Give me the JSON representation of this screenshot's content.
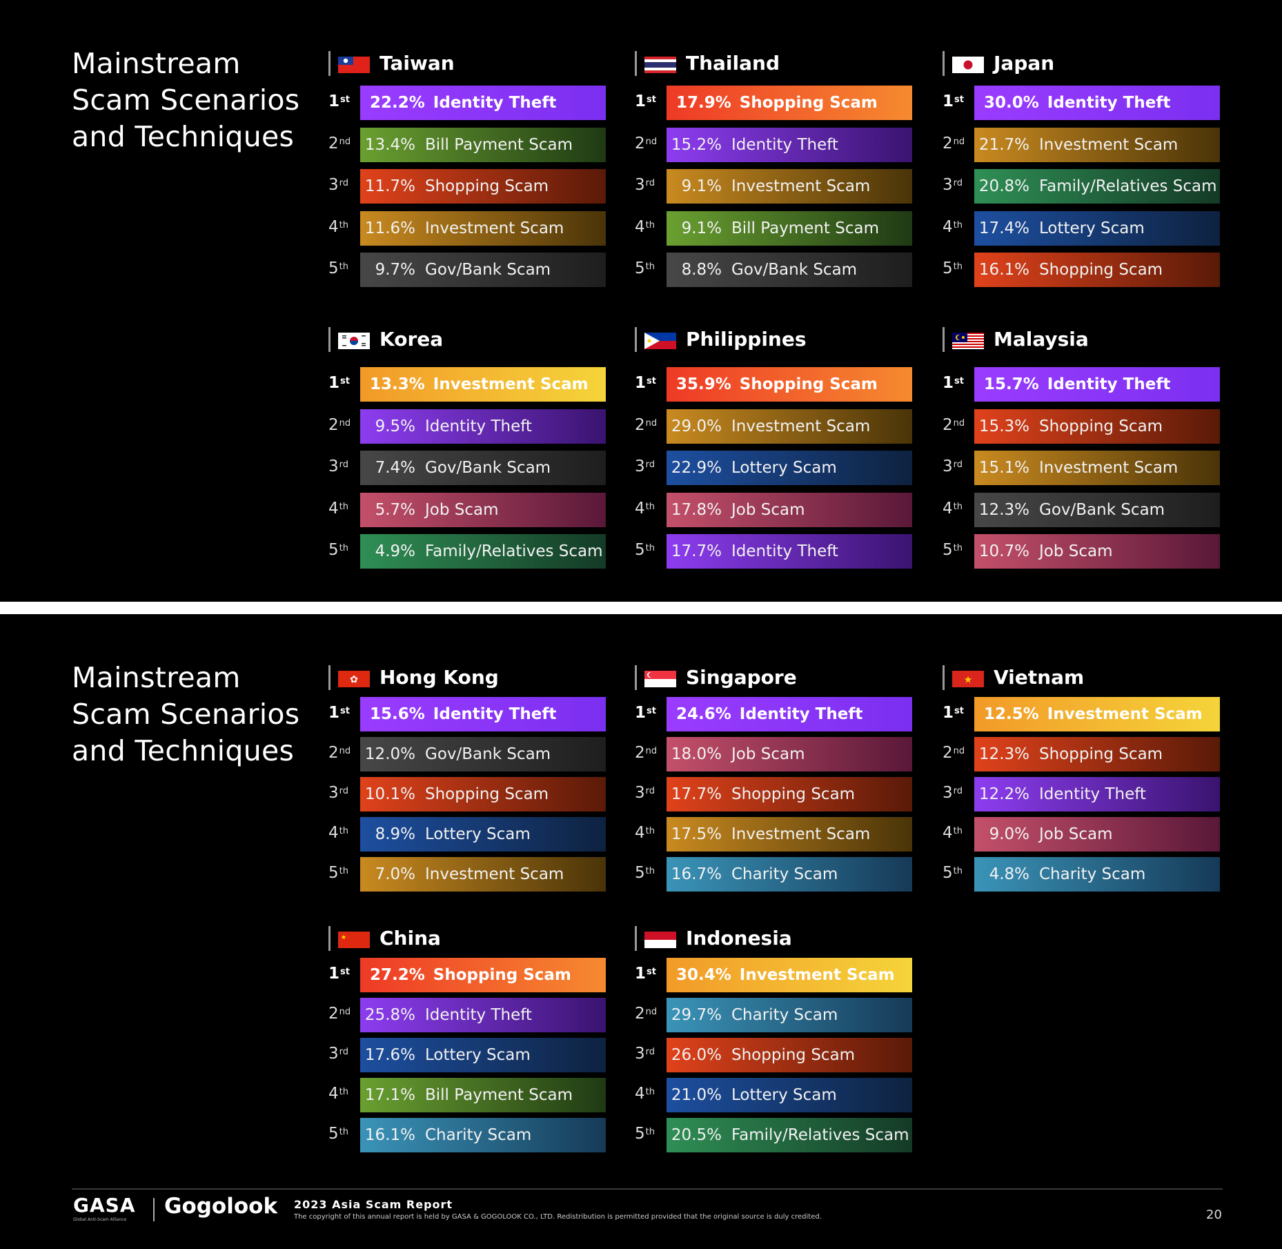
{
  "colors": {
    "Identity Theft": [
      "#8d3df0",
      "#3a1470"
    ],
    "Shopping Scam": [
      "#e0421b",
      "#5a1a08"
    ],
    "Investment Scam": [
      "#c98a20",
      "#4a3408"
    ],
    "Bill Payment Scam": [
      "#6aa030",
      "#1f3a14"
    ],
    "Gov/Bank Scam": [
      "#474747",
      "#1e1e1e"
    ],
    "Family/Relatives Scam": [
      "#2f8f55",
      "#143a26"
    ],
    "Lottery Scam": [
      "#1d4fa0",
      "#0e2240"
    ],
    "Job Scam": [
      "#c4506a",
      "#5a1838"
    ],
    "Charity Scam": [
      "#3a94b8",
      "#163a58"
    ]
  },
  "top_colors": {
    "Identity Theft": [
      "#9a3cff",
      "#7b2ff0"
    ],
    "Shopping Scam": [
      "#ee3a26",
      "#f68a30"
    ],
    "Investment Scam": [
      "#f29a28",
      "#f5d43a"
    ]
  },
  "page1": {
    "title": "Mainstream\nScam Scenarios\nand Techniques",
    "countries": [
      {
        "name": "Taiwan",
        "flag": "taiwan-flag",
        "items": [
          {
            "rank": "1",
            "sup": "st",
            "pct": "22.2%",
            "name": "Identity Theft"
          },
          {
            "rank": "2",
            "sup": "nd",
            "pct": "13.4%",
            "name": "Bill Payment Scam"
          },
          {
            "rank": "3",
            "sup": "rd",
            "pct": "11.7%",
            "name": "Shopping Scam"
          },
          {
            "rank": "4",
            "sup": "th",
            "pct": "11.6%",
            "name": "Investment Scam"
          },
          {
            "rank": "5",
            "sup": "th",
            "pct": "9.7%",
            "name": "Gov/Bank Scam"
          }
        ]
      },
      {
        "name": "Thailand",
        "flag": "thailand-flag",
        "items": [
          {
            "rank": "1",
            "sup": "st",
            "pct": "17.9%",
            "name": "Shopping Scam"
          },
          {
            "rank": "2",
            "sup": "nd",
            "pct": "15.2%",
            "name": "Identity Theft"
          },
          {
            "rank": "3",
            "sup": "rd",
            "pct": "9.1%",
            "name": "Investment Scam"
          },
          {
            "rank": "4",
            "sup": "th",
            "pct": "9.1%",
            "name": "Bill Payment Scam"
          },
          {
            "rank": "5",
            "sup": "th",
            "pct": "8.8%",
            "name": "Gov/Bank Scam"
          }
        ]
      },
      {
        "name": "Japan",
        "flag": "japan-flag",
        "items": [
          {
            "rank": "1",
            "sup": "st",
            "pct": "30.0%",
            "name": "Identity Theft"
          },
          {
            "rank": "2",
            "sup": "nd",
            "pct": "21.7%",
            "name": "Investment Scam"
          },
          {
            "rank": "3",
            "sup": "rd",
            "pct": "20.8%",
            "name": "Family/Relatives Scam"
          },
          {
            "rank": "4",
            "sup": "th",
            "pct": "17.4%",
            "name": "Lottery Scam"
          },
          {
            "rank": "5",
            "sup": "th",
            "pct": "16.1%",
            "name": "Shopping Scam"
          }
        ]
      },
      {
        "name": "Korea",
        "flag": "korea-flag",
        "items": [
          {
            "rank": "1",
            "sup": "st",
            "pct": "13.3%",
            "name": "Investment Scam"
          },
          {
            "rank": "2",
            "sup": "nd",
            "pct": "9.5%",
            "name": "Identity Theft"
          },
          {
            "rank": "3",
            "sup": "rd",
            "pct": "7.4%",
            "name": "Gov/Bank Scam"
          },
          {
            "rank": "4",
            "sup": "th",
            "pct": "5.7%",
            "name": "Job Scam"
          },
          {
            "rank": "5",
            "sup": "th",
            "pct": "4.9%",
            "name": "Family/Relatives Scam"
          }
        ]
      },
      {
        "name": "Philippines",
        "flag": "philippines-flag",
        "items": [
          {
            "rank": "1",
            "sup": "st",
            "pct": "35.9%",
            "name": "Shopping Scam"
          },
          {
            "rank": "2",
            "sup": "nd",
            "pct": "29.0%",
            "name": "Investment Scam"
          },
          {
            "rank": "3",
            "sup": "rd",
            "pct": "22.9%",
            "name": "Lottery Scam"
          },
          {
            "rank": "4",
            "sup": "th",
            "pct": "17.8%",
            "name": "Job Scam"
          },
          {
            "rank": "5",
            "sup": "th",
            "pct": "17.7%",
            "name": "Identity Theft"
          }
        ]
      },
      {
        "name": "Malaysia",
        "flag": "malaysia-flag",
        "items": [
          {
            "rank": "1",
            "sup": "st",
            "pct": "15.7%",
            "name": "Identity Theft"
          },
          {
            "rank": "2",
            "sup": "nd",
            "pct": "15.3%",
            "name": "Shopping Scam"
          },
          {
            "rank": "3",
            "sup": "rd",
            "pct": "15.1%",
            "name": "Investment Scam"
          },
          {
            "rank": "4",
            "sup": "th",
            "pct": "12.3%",
            "name": "Gov/Bank Scam"
          },
          {
            "rank": "5",
            "sup": "th",
            "pct": "10.7%",
            "name": "Job Scam"
          }
        ]
      }
    ]
  },
  "page2": {
    "title": "Mainstream\nScam Scenarios\nand Techniques",
    "countries": [
      {
        "name": "Hong Kong",
        "flag": "hongkong-flag",
        "items": [
          {
            "rank": "1",
            "sup": "st",
            "pct": "15.6%",
            "name": "Identity Theft"
          },
          {
            "rank": "2",
            "sup": "nd",
            "pct": "12.0%",
            "name": "Gov/Bank Scam"
          },
          {
            "rank": "3",
            "sup": "rd",
            "pct": "10.1%",
            "name": "Shopping Scam"
          },
          {
            "rank": "4",
            "sup": "th",
            "pct": "8.9%",
            "name": "Lottery Scam"
          },
          {
            "rank": "5",
            "sup": "th",
            "pct": "7.0%",
            "name": "Investment Scam"
          }
        ]
      },
      {
        "name": "Singapore",
        "flag": "singapore-flag",
        "items": [
          {
            "rank": "1",
            "sup": "st",
            "pct": "24.6%",
            "name": "Identity Theft"
          },
          {
            "rank": "2",
            "sup": "nd",
            "pct": "18.0%",
            "name": "Job Scam"
          },
          {
            "rank": "3",
            "sup": "rd",
            "pct": "17.7%",
            "name": "Shopping Scam"
          },
          {
            "rank": "4",
            "sup": "th",
            "pct": "17.5%",
            "name": "Investment Scam"
          },
          {
            "rank": "5",
            "sup": "th",
            "pct": "16.7%",
            "name": "Charity Scam"
          }
        ]
      },
      {
        "name": "Vietnam",
        "flag": "vietnam-flag",
        "items": [
          {
            "rank": "1",
            "sup": "st",
            "pct": "12.5%",
            "name": "Investment Scam"
          },
          {
            "rank": "2",
            "sup": "nd",
            "pct": "12.3%",
            "name": "Shopping Scam"
          },
          {
            "rank": "3",
            "sup": "rd",
            "pct": "12.2%",
            "name": "Identity Theft"
          },
          {
            "rank": "4",
            "sup": "th",
            "pct": "9.0%",
            "name": "Job Scam"
          },
          {
            "rank": "5",
            "sup": "th",
            "pct": "4.8%",
            "name": "Charity Scam"
          }
        ]
      },
      {
        "name": "China",
        "flag": "china-flag",
        "items": [
          {
            "rank": "1",
            "sup": "st",
            "pct": "27.2%",
            "name": "Shopping Scam"
          },
          {
            "rank": "2",
            "sup": "nd",
            "pct": "25.8%",
            "name": "Identity Theft"
          },
          {
            "rank": "3",
            "sup": "rd",
            "pct": "17.6%",
            "name": "Lottery Scam"
          },
          {
            "rank": "4",
            "sup": "th",
            "pct": "17.1%",
            "name": "Bill Payment Scam"
          },
          {
            "rank": "5",
            "sup": "th",
            "pct": "16.1%",
            "name": "Charity Scam"
          }
        ]
      },
      {
        "name": "Indonesia",
        "flag": "indonesia-flag",
        "items": [
          {
            "rank": "1",
            "sup": "st",
            "pct": "30.4%",
            "name": "Investment Scam"
          },
          {
            "rank": "2",
            "sup": "nd",
            "pct": "29.7%",
            "name": "Charity Scam"
          },
          {
            "rank": "3",
            "sup": "rd",
            "pct": "26.0%",
            "name": "Shopping Scam"
          },
          {
            "rank": "4",
            "sup": "th",
            "pct": "21.0%",
            "name": "Lottery Scam"
          },
          {
            "rank": "5",
            "sup": "th",
            "pct": "20.5%",
            "name": "Family/Relatives Scam"
          }
        ]
      }
    ],
    "footer": {
      "gasa": "GASA",
      "gasa_sub": "Global Anti-Scam Alliance",
      "gogolook": "Gogolook",
      "report_title": "2023 Asia Scam Report",
      "copyright": "The copyright of this annual report is held by GASA & GOGOLOOK CO., LTD. Redistribution is permitted provided that the original source is duly credited.",
      "page": "20"
    }
  }
}
